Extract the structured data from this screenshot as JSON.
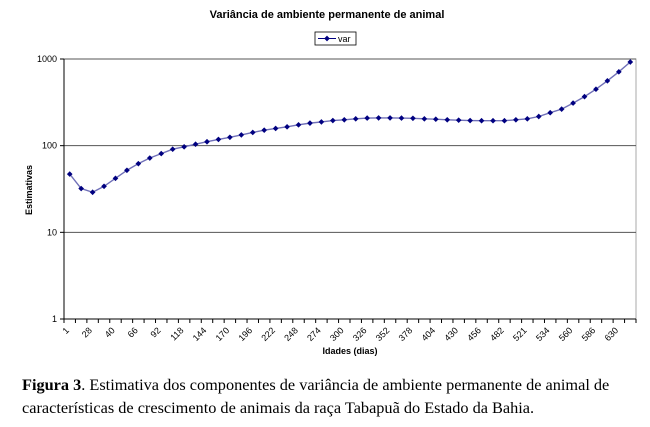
{
  "chart_data": {
    "type": "line",
    "title": "Variância de ambiente permanente de animal",
    "xlabel": "Idades (dias)",
    "ylabel": "Estimativas",
    "yscale": "log",
    "ylim": [
      1,
      1000
    ],
    "yticks": [
      "1",
      "10",
      "100",
      "1000"
    ],
    "grid": "horizontal major gridlines",
    "legend": {
      "position": "top-center",
      "entries": [
        "var"
      ]
    },
    "x_tick_labels": [
      "1",
      "28",
      "40",
      "66",
      "92",
      "118",
      "144",
      "170",
      "196",
      "222",
      "248",
      "274",
      "300",
      "326",
      "352",
      "378",
      "404",
      "430",
      "456",
      "482",
      "521",
      "534",
      "560",
      "586",
      "630"
    ],
    "series": [
      {
        "name": "var",
        "color": "#000080",
        "values": [
          47,
          32,
          29,
          34,
          42,
          52,
          62,
          72,
          81,
          91,
          97,
          104,
          111,
          118,
          125,
          133,
          142,
          151,
          158,
          165,
          174,
          182,
          188,
          195,
          199,
          204,
          208,
          209,
          209,
          208,
          207,
          204,
          202,
          199,
          197,
          195,
          194,
          194,
          194,
          199,
          204,
          217,
          240,
          264,
          310,
          368,
          448,
          560,
          711,
          923
        ]
      }
    ]
  },
  "caption": {
    "label": "Figura 3",
    "text": ". Estimativa dos componentes de variância de ambiente permanente de animal de características de crescimento de animais da raça Tabapuã do Estado da Bahia."
  }
}
